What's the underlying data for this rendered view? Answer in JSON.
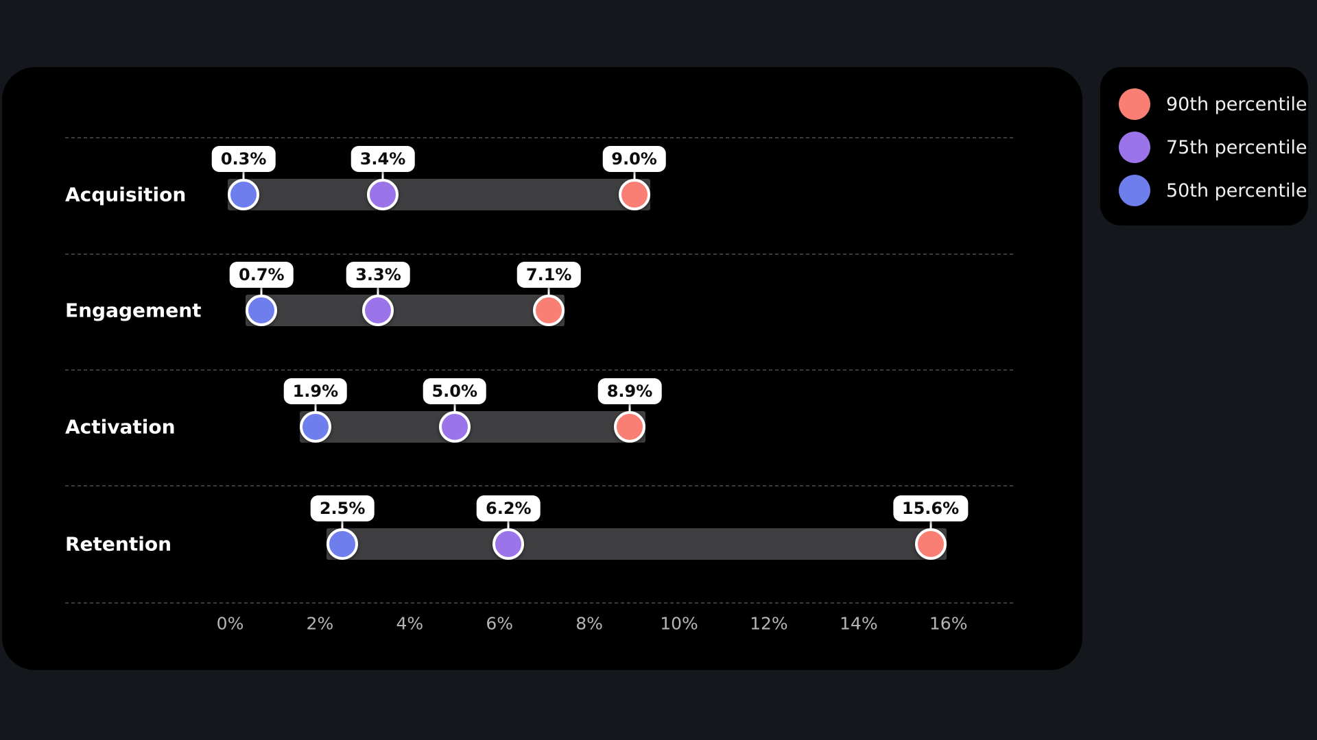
{
  "page": {
    "background_color": "#14171b",
    "panel_color": "#000000"
  },
  "legend": {
    "items": [
      {
        "key": "p90",
        "label": "90th percentile",
        "color": "#f97f74"
      },
      {
        "key": "p75",
        "label": "75th percentile",
        "color": "#9b74ea"
      },
      {
        "key": "p50",
        "label": "50th percentile",
        "color": "#6e7eed"
      }
    ]
  },
  "chart_data": {
    "type": "dumbbell",
    "categories": [
      "Acquisition",
      "Engagement",
      "Activation",
      "Retention"
    ],
    "series": [
      {
        "key": "p50",
        "name": "50th percentile",
        "color": "#6e7eed",
        "values": [
          0.3,
          0.7,
          1.9,
          2.5
        ]
      },
      {
        "key": "p75",
        "name": "75th percentile",
        "color": "#9b74ea",
        "values": [
          3.4,
          3.3,
          5.0,
          6.2
        ]
      },
      {
        "key": "p90",
        "name": "90th percentile",
        "color": "#f97f74",
        "values": [
          9.0,
          7.1,
          8.9,
          15.6
        ]
      }
    ],
    "value_labels": [
      [
        "0.3%",
        "3.4%",
        "9.0%"
      ],
      [
        "0.7%",
        "3.3%",
        "7.1%"
      ],
      [
        "1.9%",
        "5.0%",
        "8.9%"
      ],
      [
        "2.5%",
        "6.2%",
        "15.6%"
      ]
    ],
    "x_ticks": [
      "0%",
      "2%",
      "4%",
      "6%",
      "8%",
      "10%",
      "12%",
      "14%",
      "16%"
    ],
    "x_tick_values": [
      0,
      2,
      4,
      6,
      8,
      10,
      12,
      14,
      16
    ],
    "xlim": [
      0,
      16
    ],
    "bar_color": "#3f3f41",
    "grid": "dashed-row-separators",
    "legend_position": "top-right"
  }
}
